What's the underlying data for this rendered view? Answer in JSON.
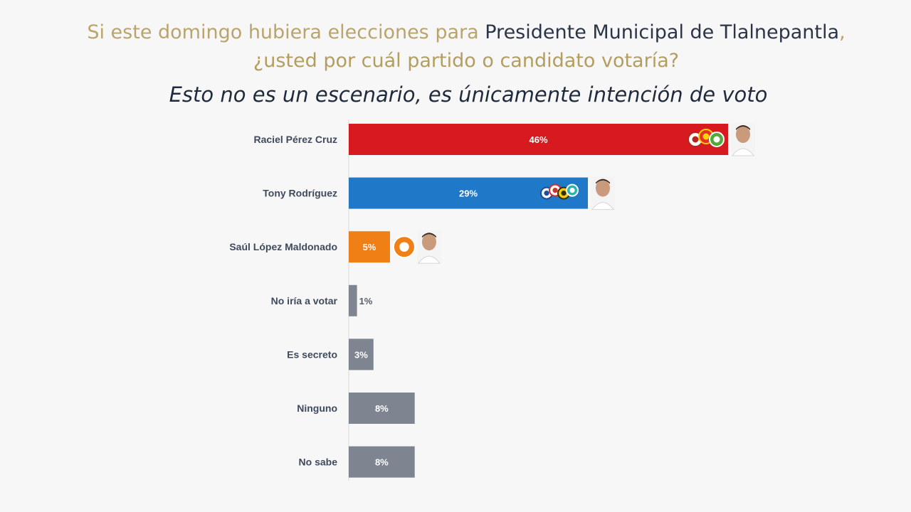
{
  "header": {
    "question_part1": "Si este domingo hubiera elecciones para ",
    "question_highlight": "Presidente Municipal de Tlalnepantla",
    "question_part2": ",",
    "question_line2": "¿usted por cuál partido o candidato votaría?",
    "subtitle": "Esto no es un escenario, es únicamente intención de voto"
  },
  "colors": {
    "Raciel Pérez Cruz": "#d71920",
    "Tony Rodríguez": "#1f78c8",
    "Saúl López Maldonado": "#f07f15",
    "other": "#7f8590"
  },
  "chart_data": {
    "type": "bar",
    "orientation": "horizontal",
    "title": "Esto no es un escenario, es únicamente intención de voto",
    "categories": [
      "Raciel Pérez Cruz",
      "Tony Rodríguez",
      "Saúl López Maldonado",
      "No iría a votar",
      "Es secreto",
      "Ninguno",
      "No sabe"
    ],
    "values": [
      46,
      29,
      5,
      1,
      3,
      8,
      8
    ],
    "value_labels": [
      "46%",
      "29%",
      "5%",
      "1%",
      "3%",
      "8%",
      "8%"
    ],
    "xlim": [
      0,
      46
    ],
    "grid": false,
    "legend": "none",
    "annotations": [
      {
        "category": "Raciel Pérez Cruz",
        "icons": [
          "morena-logo-icon",
          "pt-logo-icon",
          "pvem-logo-icon",
          "candidate-photo-icon"
        ]
      },
      {
        "category": "Tony Rodríguez",
        "icons": [
          "pan-logo-icon",
          "pri-logo-icon",
          "prd-logo-icon",
          "na-logo-icon",
          "candidate-photo-icon"
        ]
      },
      {
        "category": "Saúl López Maldonado",
        "icons": [
          "movimiento-ciudadano-logo-icon",
          "candidate-photo-icon"
        ]
      }
    ]
  }
}
